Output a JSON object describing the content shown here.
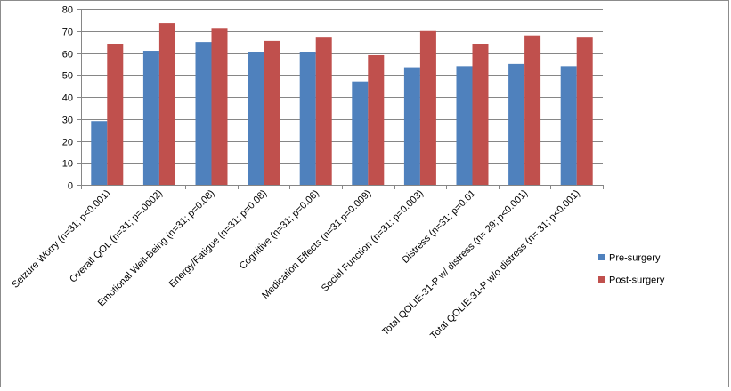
{
  "chart_data": {
    "type": "bar",
    "title": "",
    "xlabel": "",
    "ylabel": "",
    "ylim": [
      0,
      80
    ],
    "yticks": [
      0,
      10,
      20,
      30,
      40,
      50,
      60,
      70,
      80
    ],
    "grid": true,
    "legend_position": "right",
    "categories": [
      "Seizure Worry (n=31; p<0.001)",
      "Overall QOL (n=31; p=.0002)",
      "Emotional Well-Being (n=31; p=0.08)",
      "Energy/Fatigue (n=31; p=0.08)",
      "Cognitive (n=31; p=0.06)",
      "Medication Effects (n=31 p=0.009)",
      "Social Function (n=31; p=0.003)",
      "Distress (n=31; p=0.01",
      "Total QOLIE-31-P w/ distress (n= 29; p<0.001)",
      "Total QOLIE-31-P w/o distress (n= 31; p<0.001)"
    ],
    "series": [
      {
        "name": "Pre-surgery",
        "color": "#4f81bd",
        "values": [
          29,
          61,
          65,
          60.5,
          60.5,
          47,
          53.5,
          54,
          55,
          54
        ]
      },
      {
        "name": "Post-surgery",
        "color": "#c0504d",
        "values": [
          64,
          73.5,
          71,
          65.5,
          67,
          59,
          70,
          64,
          68,
          67
        ]
      }
    ]
  }
}
